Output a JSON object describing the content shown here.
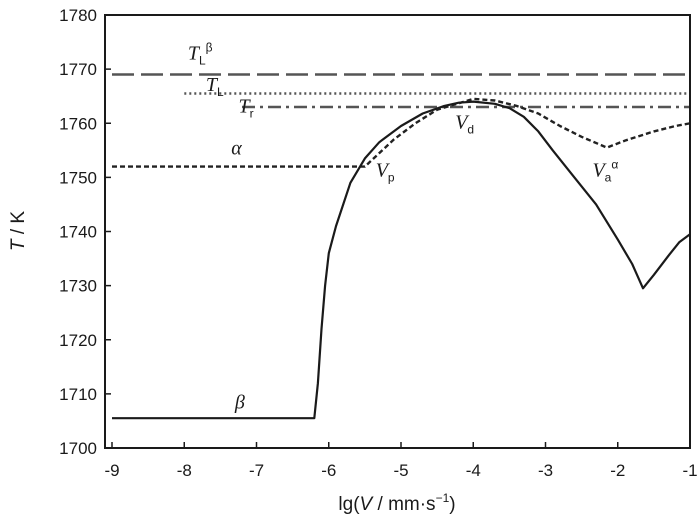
{
  "chart_data": {
    "type": "line",
    "title": "",
    "xlabel": {
      "prefix": "lg(",
      "var": "V",
      "unit": " / mm·s",
      "sup": "−1",
      "suffix": ")"
    },
    "ylabel": {
      "var": "T",
      "unit": " / K"
    },
    "xlim": [
      -9,
      -1
    ],
    "ylim": [
      1700,
      1780
    ],
    "x_ticks": [
      -9,
      -8,
      -7,
      -6,
      -5,
      -4,
      -3,
      -2,
      -1
    ],
    "y_ticks": [
      1700,
      1710,
      1720,
      1730,
      1740,
      1750,
      1760,
      1770,
      1780
    ],
    "grid": false,
    "legend": "none",
    "series": [
      {
        "style": "long-dash",
        "color": "#555555",
        "points": [
          [
            -9,
            1769
          ],
          [
            -1,
            1769
          ]
        ]
      },
      {
        "style": "dotted",
        "color": "#555555",
        "points": [
          [
            -8.0,
            1765.5
          ],
          [
            -1,
            1765.5
          ]
        ]
      },
      {
        "style": "dash-dot",
        "color": "#555555",
        "points": [
          [
            -7.2,
            1763
          ],
          [
            -1,
            1763
          ]
        ]
      },
      {
        "style": "short-dash",
        "color": "#222222",
        "points": [
          [
            -9,
            1752
          ],
          [
            -5.5,
            1752
          ],
          [
            -5.1,
            1757
          ],
          [
            -4.8,
            1760
          ],
          [
            -4.5,
            1762.5
          ],
          [
            -4.3,
            1763.3
          ],
          [
            -4.0,
            1764.5
          ],
          [
            -3.7,
            1764.2
          ],
          [
            -3.4,
            1763.2
          ],
          [
            -3.1,
            1761.8
          ],
          [
            -2.8,
            1759.5
          ],
          [
            -2.5,
            1757.5
          ],
          [
            -2.15,
            1755.5
          ],
          [
            -1.9,
            1756.8
          ],
          [
            -1.5,
            1758.5
          ],
          [
            -1.2,
            1759.5
          ],
          [
            -1.0,
            1760
          ]
        ]
      },
      {
        "style": "solid",
        "color": "#1a1a1a",
        "points": [
          [
            -9,
            1705.5
          ],
          [
            -6.2,
            1705.5
          ],
          [
            -6.15,
            1712
          ],
          [
            -6.1,
            1722
          ],
          [
            -6.05,
            1730
          ],
          [
            -6.0,
            1736
          ],
          [
            -5.9,
            1741
          ],
          [
            -5.7,
            1749
          ],
          [
            -5.5,
            1753.5
          ],
          [
            -5.3,
            1756.5
          ],
          [
            -5.0,
            1759.5
          ],
          [
            -4.7,
            1761.8
          ],
          [
            -4.4,
            1763.2
          ],
          [
            -4.2,
            1763.8
          ],
          [
            -4.0,
            1764
          ],
          [
            -3.7,
            1763.6
          ],
          [
            -3.5,
            1762.8
          ],
          [
            -3.3,
            1761.2
          ],
          [
            -3.1,
            1758.5
          ],
          [
            -2.9,
            1755
          ],
          [
            -2.6,
            1750
          ],
          [
            -2.3,
            1745
          ],
          [
            -2.0,
            1738.5
          ],
          [
            -1.8,
            1734
          ],
          [
            -1.65,
            1729.5
          ],
          [
            -1.5,
            1732
          ],
          [
            -1.3,
            1735.5
          ],
          [
            -1.15,
            1738
          ],
          [
            -1.0,
            1739.5
          ]
        ]
      }
    ],
    "annotations": [
      {
        "text": "T",
        "sub": "L",
        "sup": "β",
        "x": -7.95,
        "y": 1771.8
      },
      {
        "text": "T",
        "sub": "L",
        "sup": "",
        "x": -7.7,
        "y": 1766.0
      },
      {
        "text": "T",
        "sub": "r",
        "sup": "",
        "x": -7.25,
        "y": 1762.0
      },
      {
        "text": "α",
        "sub": "",
        "sup": "",
        "x": -7.35,
        "y": 1754.2
      },
      {
        "text": "V",
        "sub": "p",
        "sup": "",
        "x": -5.35,
        "y": 1750.2
      },
      {
        "text": "V",
        "sub": "d",
        "sup": "",
        "x": -4.25,
        "y": 1759.0
      },
      {
        "text": "V",
        "sub": "a",
        "sup": "α",
        "x": -2.35,
        "y": 1750.2
      },
      {
        "text": "β",
        "sub": "",
        "sup": "",
        "x": -7.3,
        "y": 1707.3
      }
    ]
  }
}
